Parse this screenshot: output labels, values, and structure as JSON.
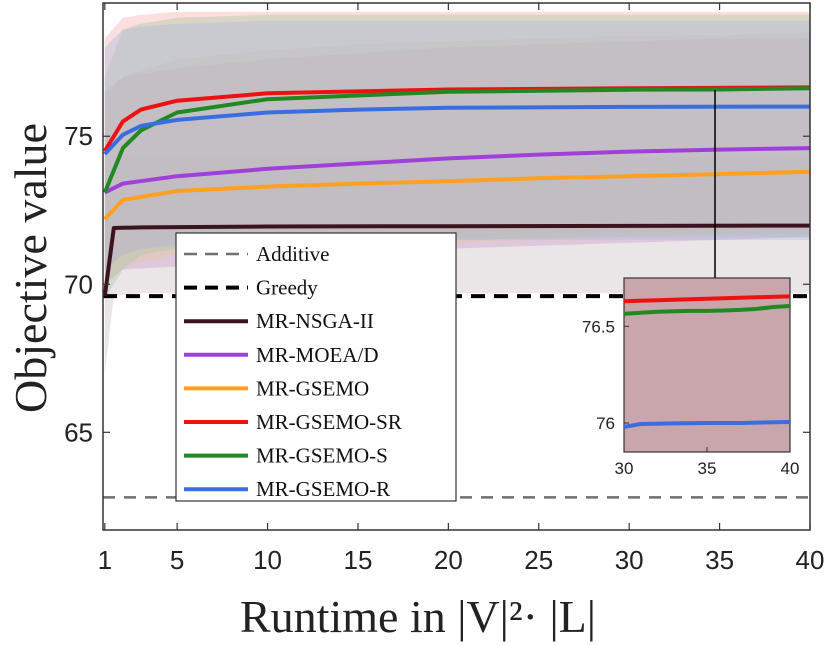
{
  "chart_data": {
    "type": "line",
    "title": "",
    "xlabel": "Runtime in |V|²· |L|",
    "ylabel": "Objective value",
    "xlim": [
      0.9,
      40
    ],
    "ylim": [
      61.7,
      79.5
    ],
    "xticks": [
      1,
      5,
      10,
      15,
      20,
      25,
      30,
      35,
      40
    ],
    "yticks": [
      65,
      70,
      75
    ],
    "legend_position": "center-left",
    "reference_lines": [
      {
        "name": "Additive",
        "value": 62.8,
        "color": "#707070",
        "style": "dashed"
      },
      {
        "name": "Greedy",
        "value": 69.6,
        "color": "#000000",
        "style": "dashed"
      }
    ],
    "series": [
      {
        "name": "MR-NSGA-II",
        "color": "#3c1420",
        "x": [
          1,
          1.5,
          3,
          5,
          10,
          20,
          30,
          40
        ],
        "values": [
          69.6,
          71.9,
          71.92,
          71.93,
          71.95,
          71.96,
          71.97,
          71.98
        ],
        "band_lower": [
          67.0,
          69.6,
          69.7,
          69.7,
          69.7,
          69.7,
          69.7,
          69.7
        ],
        "band_upper": [
          72.3,
          74.3,
          74.3,
          74.3,
          74.3,
          74.3,
          74.3,
          74.3
        ],
        "band_color": "#c8bcc0"
      },
      {
        "name": "MR-MOEA/D",
        "color": "#a040d8",
        "x": [
          1,
          2,
          5,
          10,
          15,
          20,
          25,
          30,
          35,
          40
        ],
        "values": [
          73.1,
          73.4,
          73.65,
          73.9,
          74.08,
          74.25,
          74.38,
          74.48,
          74.55,
          74.6
        ],
        "band_lower": [
          70.0,
          70.5,
          70.6,
          70.8,
          71.0,
          71.2,
          71.3,
          71.4,
          71.5,
          71.6
        ],
        "band_upper": [
          76.5,
          77.0,
          77.3,
          77.6,
          77.8,
          78.0,
          78.1,
          78.2,
          78.3,
          78.3
        ],
        "band_color": "#c89ac8"
      },
      {
        "name": "MR-GSEMO",
        "color": "#ffa020",
        "x": [
          1,
          2,
          5,
          10,
          15,
          20,
          25,
          30,
          35,
          40
        ],
        "values": [
          72.2,
          72.85,
          73.15,
          73.3,
          73.4,
          73.48,
          73.58,
          73.65,
          73.72,
          73.8
        ],
        "band_lower": [
          70.0,
          70.6,
          71.0,
          71.2,
          71.3,
          71.4,
          71.5,
          71.6,
          71.7,
          71.8
        ],
        "band_upper": [
          76.0,
          77.0,
          77.6,
          77.9,
          78.1,
          78.2,
          78.3,
          78.4,
          78.4,
          78.5
        ],
        "band_color": "#e8c8a0"
      },
      {
        "name": "MR-GSEMO-SR",
        "color": "#ee1111",
        "x": [
          1,
          2,
          3,
          5,
          10,
          20,
          30,
          40
        ],
        "values": [
          74.5,
          75.5,
          75.9,
          76.2,
          76.45,
          76.58,
          76.62,
          76.65
        ],
        "band_lower": [
          70.5,
          71.0,
          71.2,
          71.4,
          71.5,
          71.6,
          71.7,
          71.7
        ],
        "band_upper": [
          78.3,
          79.0,
          79.1,
          79.2,
          79.2,
          79.2,
          79.2,
          79.2
        ],
        "band_color": "#f4a8a8"
      },
      {
        "name": "MR-GSEMO-S",
        "color": "#228822",
        "x": [
          1,
          2,
          3,
          5,
          10,
          20,
          30,
          35,
          40
        ],
        "values": [
          73.1,
          74.6,
          75.2,
          75.8,
          76.25,
          76.5,
          76.57,
          76.58,
          76.62
        ],
        "band_lower": [
          69.5,
          70.5,
          71.0,
          71.2,
          71.4,
          71.5,
          71.6,
          71.6,
          71.6
        ],
        "band_upper": [
          77.0,
          78.6,
          78.8,
          79.0,
          79.1,
          79.1,
          79.1,
          79.1,
          79.1
        ],
        "band_color": "#a8c8a0"
      },
      {
        "name": "MR-GSEMO-R",
        "color": "#3a6ee0",
        "x": [
          1,
          2,
          3,
          5,
          10,
          15,
          20,
          30,
          40
        ],
        "values": [
          74.4,
          75.05,
          75.35,
          75.55,
          75.8,
          75.9,
          75.96,
          75.99,
          76.0
        ],
        "band_lower": [
          70.5,
          71.0,
          71.2,
          71.3,
          71.4,
          71.5,
          71.5,
          71.5,
          71.5
        ],
        "band_upper": [
          78.0,
          78.6,
          78.7,
          78.8,
          78.9,
          78.9,
          78.9,
          78.9,
          78.9
        ],
        "band_color": "#a8b8e0"
      }
    ],
    "inset": {
      "xlim": [
        30,
        40
      ],
      "ylim": [
        75.85,
        76.75
      ],
      "xticks": [
        30,
        35,
        40
      ],
      "yticks": [
        76,
        76.5
      ],
      "tick_labels_y": [
        "76",
        "76.5"
      ],
      "tick_labels_x": [
        "30",
        "35",
        "40"
      ],
      "series": [
        {
          "name": "MR-GSEMO-SR",
          "color": "#ee1111",
          "x": [
            30,
            32,
            34,
            36,
            38,
            40
          ],
          "values": [
            76.63,
            76.635,
            76.64,
            76.645,
            76.65,
            76.655
          ]
        },
        {
          "name": "MR-GSEMO-S",
          "color": "#228822",
          "x": [
            30,
            31,
            32,
            33,
            34,
            35,
            36,
            37,
            38,
            39,
            40
          ],
          "values": [
            76.565,
            76.57,
            76.575,
            76.578,
            76.58,
            76.58,
            76.582,
            76.585,
            76.59,
            76.6,
            76.605
          ]
        },
        {
          "name": "MR-GSEMO-R",
          "color": "#3a6ee0",
          "x": [
            30,
            31,
            33,
            35,
            37,
            40
          ],
          "values": [
            75.98,
            75.995,
            75.998,
            76.0,
            76.0,
            76.005
          ]
        }
      ],
      "arrow_from": {
        "x": 35,
        "y": 76.0
      }
    }
  }
}
